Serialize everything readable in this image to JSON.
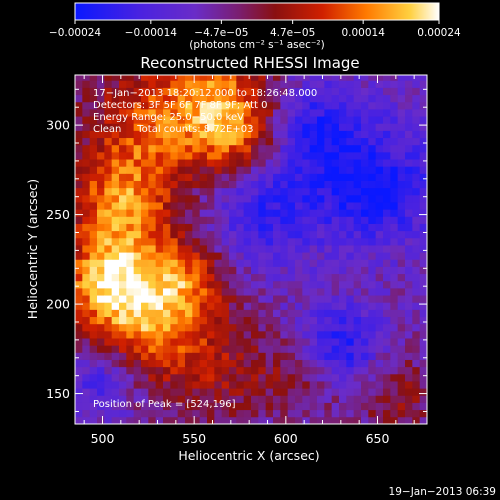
{
  "chart_data": {
    "type": "heatmap",
    "title": "Reconstructed RHESSI Image",
    "xlabel": "Heliocentric X (arcsec)",
    "ylabel": "Heliocentric Y (arcsec)",
    "xlim": [
      485,
      677
    ],
    "ylim": [
      133,
      328
    ],
    "x_ticks": [
      {
        "value": 500,
        "label": "500"
      },
      {
        "value": 550,
        "label": "550"
      },
      {
        "value": 600,
        "label": "600"
      },
      {
        "value": 650,
        "label": "650"
      }
    ],
    "y_ticks": [
      {
        "value": 150,
        "label": "150"
      },
      {
        "value": 200,
        "label": "200"
      },
      {
        "value": 250,
        "label": "250"
      },
      {
        "value": 300,
        "label": "300"
      }
    ],
    "colorbar": {
      "range": [
        -0.00024,
        0.00024
      ],
      "ticks": [
        {
          "value": -0.00024,
          "label": "−0.00024"
        },
        {
          "value": -0.00014,
          "label": "−0.00014"
        },
        {
          "value": -4.7e-05,
          "label": "−4.7e−05"
        },
        {
          "value": 4.7e-05,
          "label": "4.7e−05"
        },
        {
          "value": 0.00014,
          "label": "0.00014"
        },
        {
          "value": 0.00024,
          "label": "0.00024"
        }
      ],
      "units_label": "(photons cm⁻² s⁻¹ asec⁻²)",
      "colors": [
        "#0a18ff",
        "#6a2cc8",
        "#7a1e70",
        "#8a1010",
        "#d02000",
        "#ff7a00",
        "#ffd040",
        "#ffffff"
      ]
    },
    "annotations": [
      "17−Jan−2013 18:20:12.000 to 18:26:48.000",
      "Detectors: 3F 5F 6F 7F 8F 9F; Att 0",
      "Energy Range: 25.0−50.0 keV",
      "Clean     Total counts: 8.72E+03"
    ],
    "peak_label": "Position of Peak = [524,196]",
    "peak": [
      524,
      196
    ],
    "hot_spots": [
      {
        "x": 525,
        "y": 300,
        "r": 26,
        "v": 0.00016
      },
      {
        "x": 565,
        "y": 315,
        "r": 22,
        "v": 0.00018
      },
      {
        "x": 510,
        "y": 255,
        "r": 20,
        "v": 0.00019
      },
      {
        "x": 522,
        "y": 196,
        "r": 26,
        "v": 0.00024
      },
      {
        "x": 500,
        "y": 215,
        "r": 16,
        "v": 0.00015
      },
      {
        "x": 575,
        "y": 290,
        "r": 16,
        "v": 0.00012
      },
      {
        "x": 545,
        "y": 215,
        "r": 16,
        "v": 0.0001
      },
      {
        "x": 565,
        "y": 160,
        "r": 22,
        "v": 9e-05
      },
      {
        "x": 610,
        "y": 160,
        "r": 16,
        "v": 8e-05
      },
      {
        "x": 660,
        "y": 150,
        "r": 18,
        "v": 9e-05
      },
      {
        "x": 655,
        "y": 280,
        "r": 14,
        "v": 6e-05
      }
    ],
    "cold_spots": [
      {
        "x": 650,
        "y": 270,
        "r": 22,
        "v": -0.0002
      },
      {
        "x": 630,
        "y": 175,
        "r": 16,
        "v": -0.00015
      },
      {
        "x": 590,
        "y": 255,
        "r": 22,
        "v": -0.00012
      },
      {
        "x": 615,
        "y": 300,
        "r": 18,
        "v": -0.00012
      },
      {
        "x": 500,
        "y": 160,
        "r": 14,
        "v": -0.00012
      }
    ],
    "background": -7e-05
  },
  "timestamp": "19−Jan−2013 06:39"
}
